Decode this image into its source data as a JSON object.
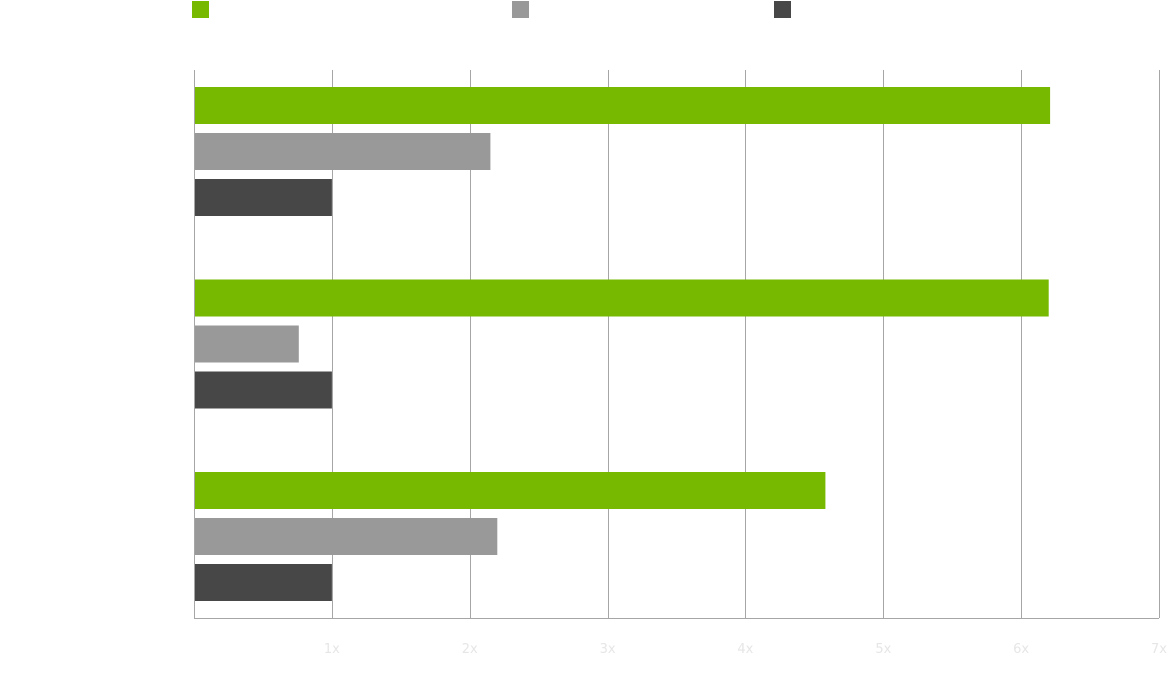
{
  "chart_data": {
    "type": "bar",
    "orientation": "horizontal",
    "title": "",
    "xlabel": "",
    "ylabel": "",
    "categories": [
      "",
      "",
      ""
    ],
    "series": [
      {
        "name": "",
        "color": "#76b900",
        "values": [
          6.21,
          6.2,
          4.58
        ]
      },
      {
        "name": "",
        "color": "#999999",
        "values": [
          2.15,
          0.76,
          2.2
        ]
      },
      {
        "name": "",
        "color": "#474747",
        "values": [
          1.0,
          1.0,
          1.0
        ]
      }
    ],
    "xlim": [
      0,
      7
    ],
    "x_ticks": [
      1,
      2,
      3,
      4,
      5,
      6,
      7
    ],
    "x_tick_labels": [
      "1x",
      "2x",
      "3x",
      "4x",
      "5x",
      "6x",
      "7x"
    ],
    "tick_label_color": "#e6e6e6",
    "grid": true,
    "grid_color": "#a6a6a6",
    "legend_position": "top"
  }
}
